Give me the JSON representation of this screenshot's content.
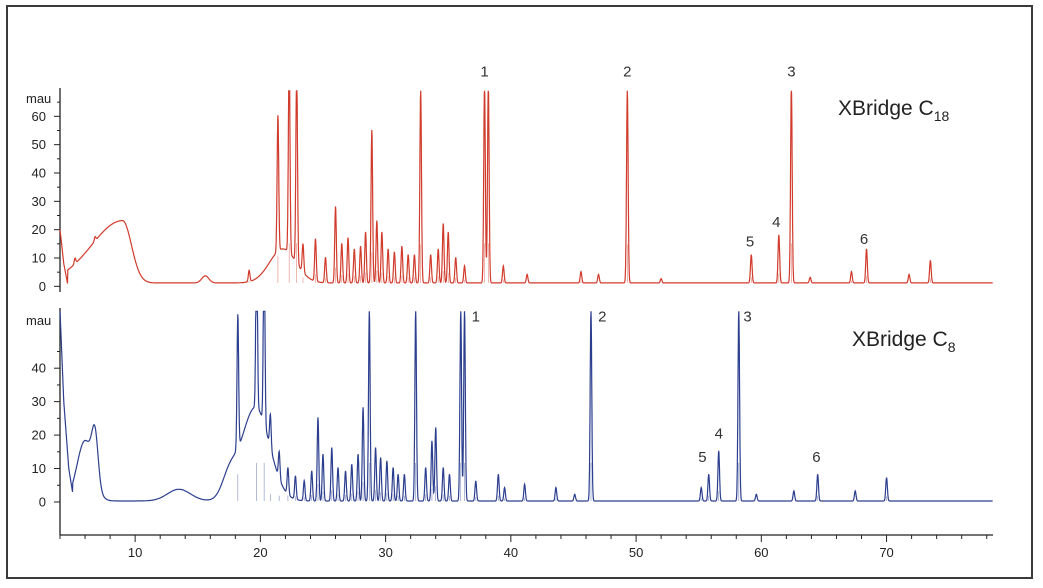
{
  "chart_data": {
    "type": "line",
    "panels": [
      {
        "title_main": "XBridge C",
        "title_sub": "18",
        "ylabel": "mau",
        "color": "#d13b2c",
        "xlim": [
          4,
          78.5
        ],
        "ylim": [
          -2,
          70
        ],
        "clip_at": 69,
        "yticks": [
          0,
          10,
          20,
          30,
          40,
          50,
          60
        ],
        "baseline": 1.2,
        "start_values": [
          [
            4.0,
            20
          ],
          [
            4.3,
            8
          ],
          [
            4.6,
            1
          ]
        ],
        "broad_peaks": [
          {
            "x": 9.0,
            "h": 22,
            "w": 1.0,
            "ramp": 3.5
          },
          {
            "x": 15.6,
            "h": 2.5,
            "w": 0.4
          },
          {
            "x": 21.8,
            "h": 12,
            "w": 1.5
          }
        ],
        "peaks": [
          [
            5.2,
            2
          ],
          [
            6.8,
            1.5
          ],
          [
            19.1,
            4
          ],
          [
            21.4,
            48
          ],
          [
            22.3,
            70
          ],
          [
            22.9,
            70
          ],
          [
            23.4,
            10
          ],
          [
            24.4,
            15
          ],
          [
            25.2,
            9
          ],
          [
            26.0,
            27
          ],
          [
            26.5,
            14
          ],
          [
            27.0,
            16
          ],
          [
            27.5,
            12
          ],
          [
            28.0,
            13
          ],
          [
            28.4,
            18
          ],
          [
            28.9,
            54
          ],
          [
            29.3,
            22
          ],
          [
            29.7,
            18
          ],
          [
            30.2,
            12
          ],
          [
            30.7,
            11
          ],
          [
            31.3,
            13
          ],
          [
            31.8,
            10
          ],
          [
            32.3,
            10
          ],
          [
            32.8,
            68
          ],
          [
            33.6,
            10
          ],
          [
            34.2,
            12
          ],
          [
            34.6,
            21
          ],
          [
            35.0,
            18
          ],
          [
            35.6,
            9
          ],
          [
            36.3,
            6
          ],
          [
            37.9,
            70
          ],
          [
            38.2,
            70
          ],
          [
            39.4,
            6
          ],
          [
            41.3,
            3
          ],
          [
            45.6,
            4
          ],
          [
            47.0,
            3
          ],
          [
            49.3,
            68
          ],
          [
            52.0,
            1.5
          ],
          [
            59.2,
            10
          ],
          [
            61.4,
            17
          ],
          [
            62.4,
            70
          ],
          [
            63.9,
            2
          ],
          [
            67.2,
            4
          ],
          [
            68.4,
            12
          ],
          [
            71.8,
            3
          ],
          [
            73.5,
            8
          ]
        ],
        "peak_labels": [
          {
            "text": "1",
            "x": 37.9,
            "y": 74
          },
          {
            "text": "2",
            "x": 49.3,
            "y": 74
          },
          {
            "text": "3",
            "x": 62.4,
            "y": 74
          },
          {
            "text": "4",
            "x": 61.2,
            "y": 21
          },
          {
            "text": "5",
            "x": 59.1,
            "y": 14
          },
          {
            "text": "6",
            "x": 68.2,
            "y": 15
          }
        ]
      },
      {
        "title_main": "XBridge C",
        "title_sub": "8",
        "ylabel": "mau",
        "color": "#2c3f8f",
        "xlim": [
          4,
          78.5
        ],
        "ylim": [
          -3,
          58
        ],
        "clip_at": 57,
        "yticks": [
          0,
          10,
          20,
          30,
          40
        ],
        "baseline": 0.3,
        "start_values": [
          [
            4.0,
            57
          ],
          [
            4.3,
            30
          ],
          [
            4.7,
            10
          ],
          [
            5.0,
            3
          ]
        ],
        "broad_peaks": [
          {
            "x": 6.0,
            "h": 18,
            "w": 0.9
          },
          {
            "x": 6.8,
            "h": 14,
            "w": 0.35
          },
          {
            "x": 13.5,
            "h": 3.5,
            "w": 1.3
          },
          {
            "x": 17.5,
            "h": 6,
            "w": 0.8
          },
          {
            "x": 19.6,
            "h": 28,
            "w": 1.6
          }
        ],
        "peaks": [
          [
            18.2,
            40
          ],
          [
            19.7,
            57
          ],
          [
            20.3,
            57
          ],
          [
            20.8,
            10
          ],
          [
            21.5,
            8
          ],
          [
            22.2,
            8
          ],
          [
            22.8,
            7
          ],
          [
            23.5,
            6
          ],
          [
            24.1,
            9
          ],
          [
            24.6,
            25
          ],
          [
            25.0,
            14
          ],
          [
            25.7,
            16
          ],
          [
            26.2,
            10
          ],
          [
            26.8,
            9
          ],
          [
            27.3,
            11
          ],
          [
            27.8,
            14
          ],
          [
            28.2,
            28
          ],
          [
            28.7,
            57
          ],
          [
            29.2,
            16
          ],
          [
            29.6,
            13
          ],
          [
            30.1,
            12
          ],
          [
            30.6,
            10
          ],
          [
            31.0,
            8
          ],
          [
            31.5,
            8
          ],
          [
            32.4,
            57
          ],
          [
            33.2,
            10
          ],
          [
            33.7,
            18
          ],
          [
            34.0,
            22
          ],
          [
            34.6,
            10
          ],
          [
            35.1,
            8
          ],
          [
            36.0,
            57
          ],
          [
            36.3,
            57
          ],
          [
            37.2,
            6
          ],
          [
            39.0,
            8
          ],
          [
            39.5,
            4
          ],
          [
            41.1,
            5
          ],
          [
            43.6,
            4
          ],
          [
            45.1,
            2
          ],
          [
            46.4,
            57
          ],
          [
            55.2,
            4
          ],
          [
            55.8,
            8
          ],
          [
            56.6,
            15
          ],
          [
            58.2,
            57
          ],
          [
            59.6,
            2
          ],
          [
            62.6,
            3
          ],
          [
            64.5,
            8
          ],
          [
            67.5,
            3
          ],
          [
            70.0,
            7
          ]
        ],
        "peak_labels": [
          {
            "text": "1",
            "x": 37.2,
            "y": 54
          },
          {
            "text": "2",
            "x": 47.3,
            "y": 54
          },
          {
            "text": "3",
            "x": 58.9,
            "y": 54
          },
          {
            "text": "4",
            "x": 56.6,
            "y": 19
          },
          {
            "text": "5",
            "x": 55.3,
            "y": 12
          },
          {
            "text": "6",
            "x": 64.4,
            "y": 12
          }
        ]
      }
    ],
    "xaxis": {
      "ticks": [
        10,
        20,
        30,
        40,
        50,
        60,
        70
      ],
      "minor_step": 2
    }
  }
}
